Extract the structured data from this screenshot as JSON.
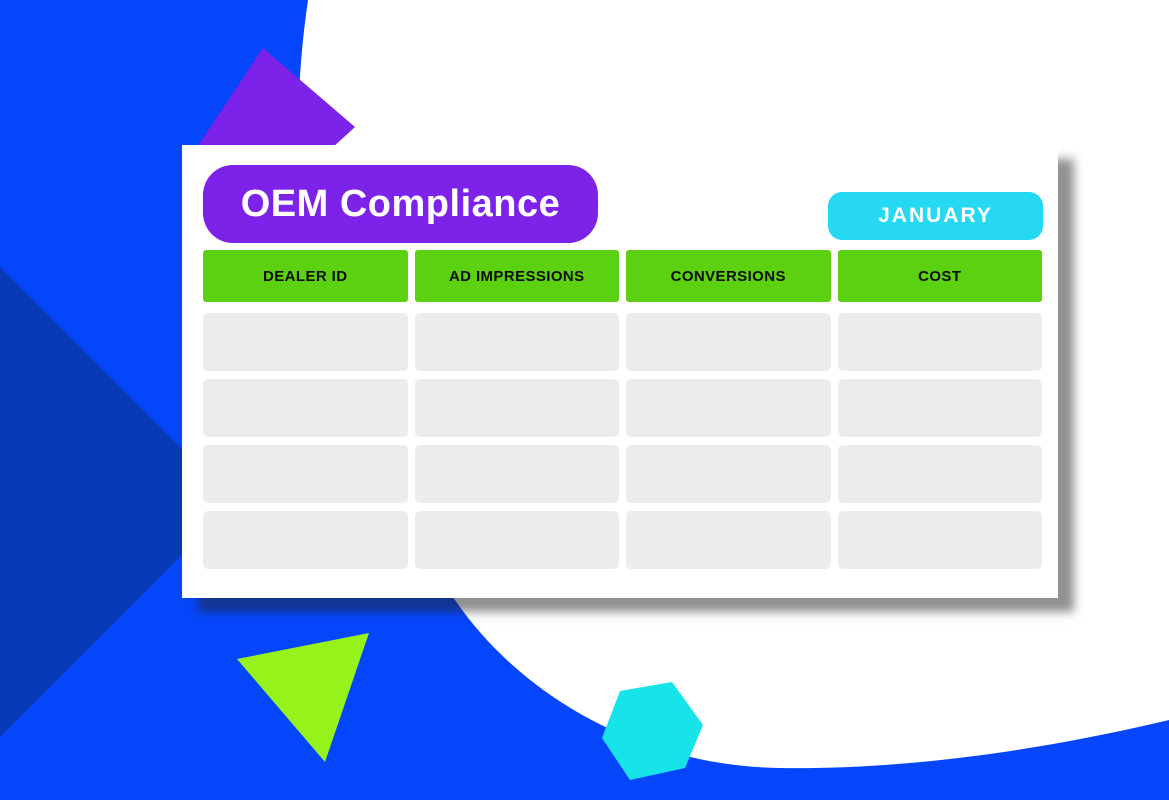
{
  "card": {
    "title": "OEM Compliance",
    "month_badge": "JANUARY"
  },
  "table": {
    "columns": [
      "DEALER ID",
      "AD IMPRESSIONS",
      "CONVERSIONS",
      "COST"
    ],
    "rows": [
      [
        "",
        "",
        "",
        ""
      ],
      [
        "",
        "",
        "",
        ""
      ],
      [
        "",
        "",
        "",
        ""
      ],
      [
        "",
        "",
        "",
        ""
      ]
    ]
  },
  "colors": {
    "background_blue": "#0546fb",
    "dark_blue_diamond": "#0839b6",
    "purple": "#7d22e8",
    "cyan_badge": "#27d8f2",
    "cyan_hexagon": "#16e4e9",
    "green_header": "#5cd110",
    "green_triangle": "#96f21b",
    "cell_gray": "#ececec",
    "card_white": "#ffffff"
  },
  "decor": {
    "shapes": [
      "white-blob",
      "dark-blue-diamond",
      "purple-triangle",
      "green-triangle",
      "cyan-hexagon"
    ]
  }
}
